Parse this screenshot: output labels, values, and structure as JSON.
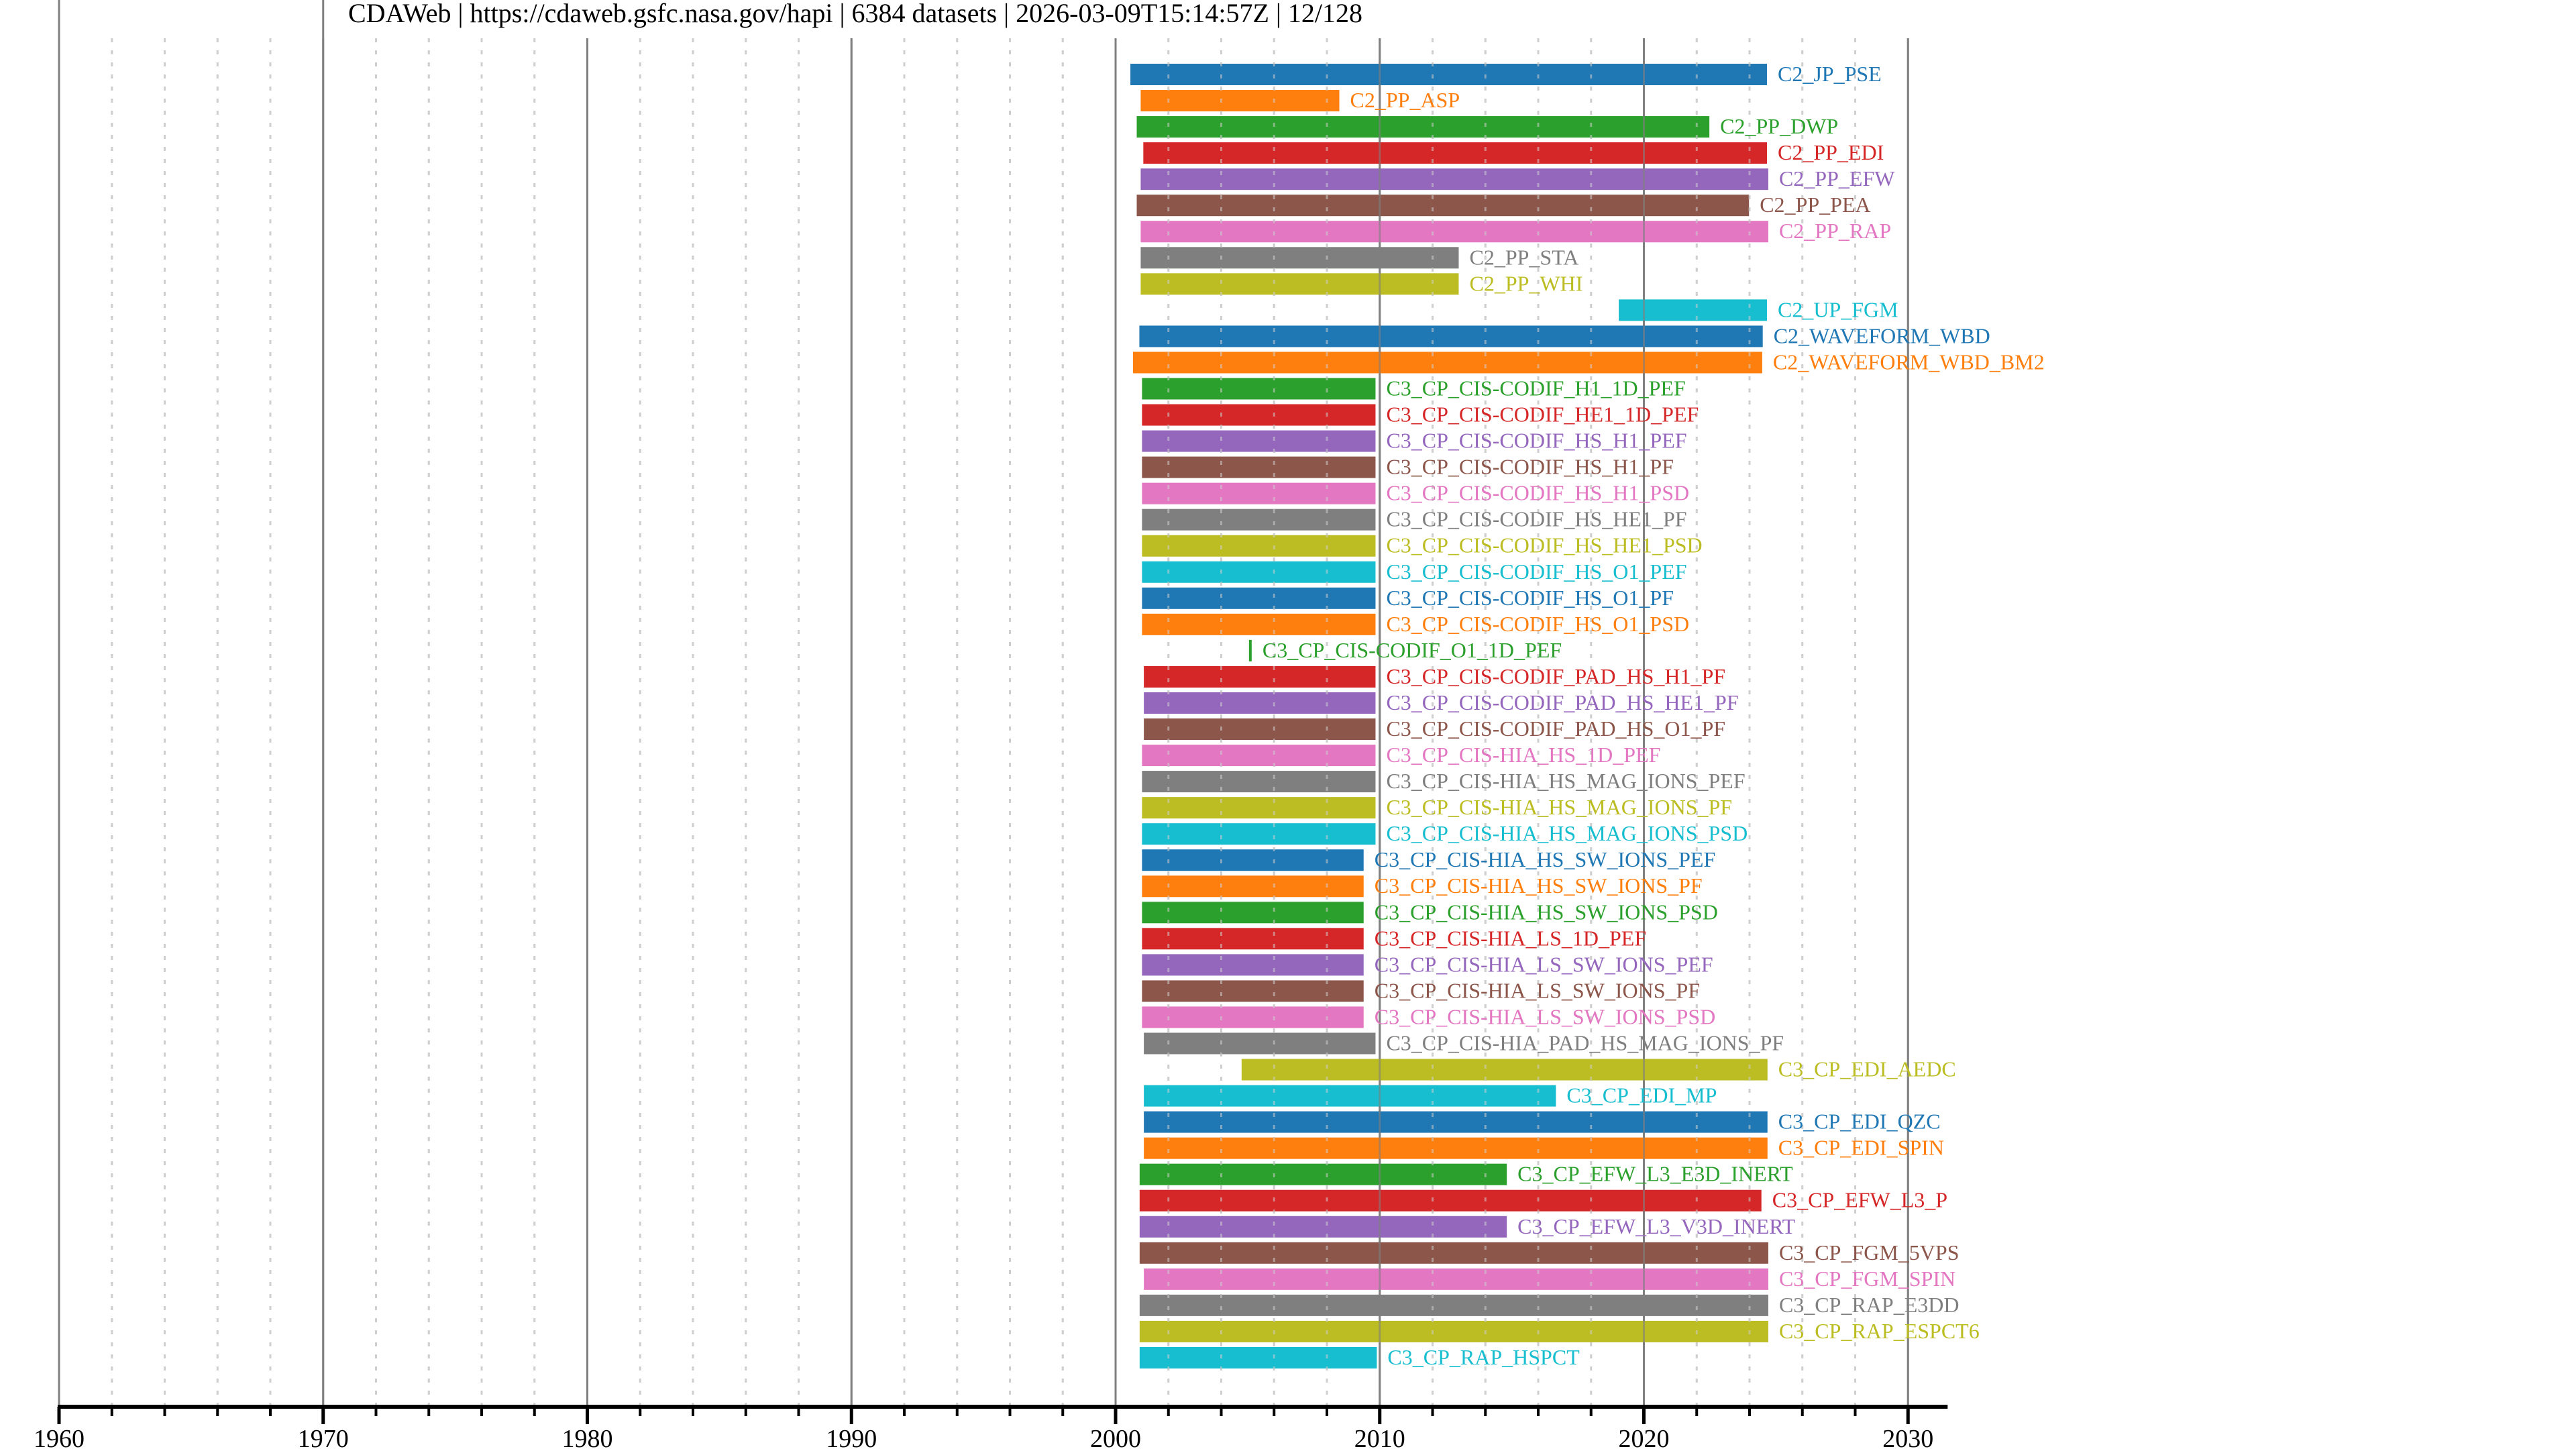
{
  "chart_data": {
    "type": "bar",
    "orientation": "horizontal-timeline",
    "title": "CDAWeb | https://cdaweb.gsfc.nasa.gov/hapi | 6384 datasets | 2026-03-09T15:14:57Z | 12/128",
    "xlabel": "",
    "ylabel": "",
    "xlim": [
      1960,
      2031.5
    ],
    "major_ticks": [
      1960,
      1970,
      1980,
      1990,
      2000,
      2010,
      2020,
      2030
    ],
    "major_tick_labels": [
      "1960",
      "1970",
      "1980",
      "1990",
      "2000",
      "2010",
      "2020",
      "2030"
    ],
    "minor_tick_step": 2,
    "grid": true,
    "legend": "labels at bar ends",
    "palette": [
      "#1f77b4",
      "#ff7f0e",
      "#2ca02c",
      "#d62728",
      "#9467bd",
      "#8c564b",
      "#e377c2",
      "#7f7f7f",
      "#bcbd22",
      "#17becf"
    ],
    "series": [
      {
        "name": "C2_JP_PSE",
        "start": 2000.56,
        "end": 2024.66
      },
      {
        "name": "C2_PP_ASP",
        "start": 2000.95,
        "end": 2008.47
      },
      {
        "name": "C2_PP_DWP",
        "start": 2000.8,
        "end": 2022.48
      },
      {
        "name": "C2_PP_EDI",
        "start": 2001.05,
        "end": 2024.66
      },
      {
        "name": "C2_PP_EFW",
        "start": 2000.95,
        "end": 2024.71
      },
      {
        "name": "C2_PP_PEA",
        "start": 2000.8,
        "end": 2023.98
      },
      {
        "name": "C2_PP_RAP",
        "start": 2000.95,
        "end": 2024.71
      },
      {
        "name": "C2_PP_STA",
        "start": 2000.95,
        "end": 2012.99
      },
      {
        "name": "C2_PP_WHI",
        "start": 2000.95,
        "end": 2012.99
      },
      {
        "name": "C2_UP_FGM",
        "start": 2019.05,
        "end": 2024.66
      },
      {
        "name": "C2_WAVEFORM_WBD",
        "start": 2000.9,
        "end": 2024.5
      },
      {
        "name": "C2_WAVEFORM_WBD_BM2",
        "start": 2000.66,
        "end": 2024.48
      },
      {
        "name": "C3_CP_CIS-CODIF_H1_1D_PEF",
        "start": 2001.0,
        "end": 2009.84
      },
      {
        "name": "C3_CP_CIS-CODIF_HE1_1D_PEF",
        "start": 2001.0,
        "end": 2009.84
      },
      {
        "name": "C3_CP_CIS-CODIF_HS_H1_PEF",
        "start": 2001.0,
        "end": 2009.84
      },
      {
        "name": "C3_CP_CIS-CODIF_HS_H1_PF",
        "start": 2001.0,
        "end": 2009.84
      },
      {
        "name": "C3_CP_CIS-CODIF_HS_H1_PSD",
        "start": 2001.0,
        "end": 2009.84
      },
      {
        "name": "C3_CP_CIS-CODIF_HS_HE1_PF",
        "start": 2001.0,
        "end": 2009.84
      },
      {
        "name": "C3_CP_CIS-CODIF_HS_HE1_PSD",
        "start": 2001.0,
        "end": 2009.84
      },
      {
        "name": "C3_CP_CIS-CODIF_HS_O1_PEF",
        "start": 2001.0,
        "end": 2009.84
      },
      {
        "name": "C3_CP_CIS-CODIF_HS_O1_PF",
        "start": 2001.0,
        "end": 2009.84
      },
      {
        "name": "C3_CP_CIS-CODIF_HS_O1_PSD",
        "start": 2001.0,
        "end": 2009.84
      },
      {
        "name": "C3_CP_CIS-CODIF_O1_1D_PEF",
        "start": 2005.05,
        "end": 2005.1
      },
      {
        "name": "C3_CP_CIS-CODIF_PAD_HS_H1_PF",
        "start": 2001.07,
        "end": 2009.84
      },
      {
        "name": "C3_CP_CIS-CODIF_PAD_HS_HE1_PF",
        "start": 2001.07,
        "end": 2009.84
      },
      {
        "name": "C3_CP_CIS-CODIF_PAD_HS_O1_PF",
        "start": 2001.07,
        "end": 2009.84
      },
      {
        "name": "C3_CP_CIS-HIA_HS_1D_PEF",
        "start": 2001.0,
        "end": 2009.84
      },
      {
        "name": "C3_CP_CIS-HIA_HS_MAG_IONS_PEF",
        "start": 2001.0,
        "end": 2009.84
      },
      {
        "name": "C3_CP_CIS-HIA_HS_MAG_IONS_PF",
        "start": 2001.0,
        "end": 2009.84
      },
      {
        "name": "C3_CP_CIS-HIA_HS_MAG_IONS_PSD",
        "start": 2001.0,
        "end": 2009.84
      },
      {
        "name": "C3_CP_CIS-HIA_HS_SW_IONS_PEF",
        "start": 2001.0,
        "end": 2009.39
      },
      {
        "name": "C3_CP_CIS-HIA_HS_SW_IONS_PF",
        "start": 2001.0,
        "end": 2009.39
      },
      {
        "name": "C3_CP_CIS-HIA_HS_SW_IONS_PSD",
        "start": 2001.0,
        "end": 2009.39
      },
      {
        "name": "C3_CP_CIS-HIA_LS_1D_PEF",
        "start": 2001.0,
        "end": 2009.39
      },
      {
        "name": "C3_CP_CIS-HIA_LS_SW_IONS_PEF",
        "start": 2001.0,
        "end": 2009.39
      },
      {
        "name": "C3_CP_CIS-HIA_LS_SW_IONS_PF",
        "start": 2001.0,
        "end": 2009.39
      },
      {
        "name": "C3_CP_CIS-HIA_LS_SW_IONS_PSD",
        "start": 2001.0,
        "end": 2009.39
      },
      {
        "name": "C3_CP_CIS-HIA_PAD_HS_MAG_IONS_PF",
        "start": 2001.07,
        "end": 2009.84
      },
      {
        "name": "C3_CP_EDI_AEDC",
        "start": 2004.77,
        "end": 2024.68
      },
      {
        "name": "C3_CP_EDI_MP",
        "start": 2001.07,
        "end": 2016.67
      },
      {
        "name": "C3_CP_EDI_QZC",
        "start": 2001.07,
        "end": 2024.68
      },
      {
        "name": "C3_CP_EDI_SPIN",
        "start": 2001.07,
        "end": 2024.68
      },
      {
        "name": "C3_CP_EFW_L3_E3D_INERT",
        "start": 2000.91,
        "end": 2014.81
      },
      {
        "name": "C3_CP_EFW_L3_P",
        "start": 2000.91,
        "end": 2024.45
      },
      {
        "name": "C3_CP_EFW_L3_V3D_INERT",
        "start": 2000.91,
        "end": 2014.81
      },
      {
        "name": "C3_CP_FGM_5VPS",
        "start": 2000.91,
        "end": 2024.71
      },
      {
        "name": "C3_CP_FGM_SPIN",
        "start": 2001.07,
        "end": 2024.71
      },
      {
        "name": "C3_CP_RAP_E3DD",
        "start": 2000.91,
        "end": 2024.71
      },
      {
        "name": "C3_CP_RAP_ESPCT6",
        "start": 2000.91,
        "end": 2024.71
      },
      {
        "name": "C3_CP_RAP_HSPCT",
        "start": 2000.91,
        "end": 2009.89
      }
    ]
  }
}
